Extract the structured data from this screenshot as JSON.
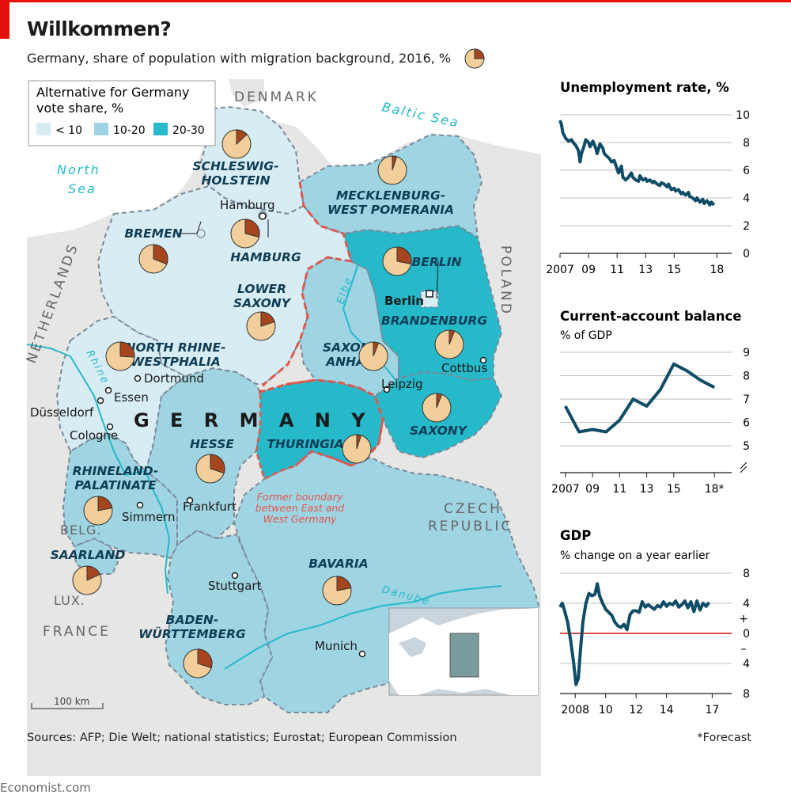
{
  "header": {
    "title": "Willkommen?",
    "subtitle": "Germany, share of population with migration background, 2016, %"
  },
  "colors": {
    "accent_red": "#e3120b",
    "sea": "#ffffff",
    "land_other": "#e6e6e4",
    "afd_lt10": "#d8ecf4",
    "afd_10_20": "#9fd4e2",
    "afd_20_30": "#25b9ca",
    "pie_share": "#a6461f",
    "pie_rest": "#f2cf9a",
    "line": "#0f4c66",
    "border_east_west": "#e2574c",
    "state_border": "#7a8a9a"
  },
  "map": {
    "legend": {
      "title_line1": "Alternative for Germany",
      "title_line2": "vote share, %",
      "items": [
        "< 10",
        "10-20",
        "20-30"
      ]
    },
    "countries": {
      "denmark": "DENMARK",
      "poland": "POLAND",
      "netherlands": "NETHERLANDS",
      "belgium": "BELG.",
      "luxembourg": "LUX.",
      "france": "FRANCE",
      "czech_line1": "CZECH",
      "czech_line2": "REPUBLIC",
      "germany": "G E R M A N Y"
    },
    "waters": {
      "north_sea_1": "North",
      "north_sea_2": "Sea",
      "baltic_sea": "Baltic Sea",
      "rhine": "Rhine",
      "elbe": "Elbe",
      "danube": "Danube"
    },
    "east_west_note": [
      "Former boundary",
      "between East and",
      "West Germany"
    ],
    "scale": "100 km",
    "cities": {
      "hamburg": "Hamburg",
      "berlin": "Berlin",
      "dortmund": "Dortmund",
      "essen": "Essen",
      "dusseldorf": "Düsseldorf",
      "cologne": "Cologne",
      "leipzig": "Leipzig",
      "cottbus": "Cottbus",
      "frankfurt": "Frankfurt",
      "simmern": "Simmern",
      "stuttgart": "Stuttgart",
      "munich": "Munich"
    },
    "states": [
      {
        "key": "sh",
        "name": [
          "SCHLESWIG-",
          "HOLSTEIN"
        ],
        "afd_band": "< 10",
        "share": 13
      },
      {
        "key": "mv",
        "name": [
          "MECKLENBURG-",
          "WEST POMERANIA"
        ],
        "afd_band": "10-20",
        "share": 5
      },
      {
        "key": "hb",
        "name": [
          "BREMEN"
        ],
        "afd_band": "< 10",
        "share": 31
      },
      {
        "key": "hh",
        "name": [
          "HAMBURG"
        ],
        "afd_band": "< 10",
        "share": 29
      },
      {
        "key": "ni",
        "name": [
          "LOWER",
          "SAXONY"
        ],
        "afd_band": "< 10",
        "share": 20
      },
      {
        "key": "be",
        "name": [
          "BERLIN"
        ],
        "afd_band": "< 10",
        "share": 28
      },
      {
        "key": "bb",
        "name": [
          "BRANDENBURG"
        ],
        "afd_band": "20-30",
        "share": 6
      },
      {
        "key": "nw",
        "name": [
          "NORTH RHINE-",
          "WESTPHALIA"
        ],
        "afd_band": "< 10",
        "share": 26
      },
      {
        "key": "st",
        "name": [
          "SAXONY-",
          "ANHALT"
        ],
        "afd_band": "10-20",
        "share": 6
      },
      {
        "key": "sn",
        "name": [
          "SAXONY"
        ],
        "afd_band": "20-30",
        "share": 6
      },
      {
        "key": "th",
        "name": [
          "THURINGIA"
        ],
        "afd_band": "20-30",
        "share": 5
      },
      {
        "key": "he",
        "name": [
          "HESSE"
        ],
        "afd_band": "10-20",
        "share": 30
      },
      {
        "key": "rp",
        "name": [
          "RHINELAND-",
          "PALATINATE"
        ],
        "afd_band": "10-20",
        "share": 22
      },
      {
        "key": "sl",
        "name": [
          "SAARLAND"
        ],
        "afd_band": "10-20",
        "share": 18
      },
      {
        "key": "by",
        "name": [
          "BAVARIA"
        ],
        "afd_band": "10-20",
        "share": 22
      },
      {
        "key": "bw",
        "name": [
          "BADEN-",
          "WÜRTTEMBERG"
        ],
        "afd_band": "10-20",
        "share": 30
      }
    ]
  },
  "chart_data": [
    {
      "type": "line",
      "title": "Unemployment rate, %",
      "subtitle": "",
      "x_tick_labels": [
        "2007",
        "09",
        "11",
        "13",
        "15",
        "18"
      ],
      "x_tick_values": [
        2007,
        2009,
        2011,
        2013,
        2015,
        2018
      ],
      "xlim": [
        2007,
        2018.2
      ],
      "ylim": [
        0,
        10
      ],
      "y_ticks": [
        0,
        2,
        4,
        6,
        8,
        10
      ],
      "y_tick_labels": [
        "0",
        "2",
        "4",
        "6",
        "8",
        "10"
      ],
      "grid": true,
      "series": [
        {
          "values": [
            [
              2007.0,
              9.6
            ],
            [
              2007.1,
              9.3
            ],
            [
              2007.2,
              8.7
            ],
            [
              2007.4,
              8.3
            ],
            [
              2007.6,
              8.1
            ],
            [
              2007.8,
              8.2
            ],
            [
              2008.0,
              7.9
            ],
            [
              2008.1,
              7.8
            ],
            [
              2008.3,
              7.4
            ],
            [
              2008.4,
              6.6
            ],
            [
              2008.5,
              7.2
            ],
            [
              2008.7,
              7.8
            ],
            [
              2008.8,
              8.2
            ],
            [
              2009.0,
              8.0
            ],
            [
              2009.1,
              7.7
            ],
            [
              2009.3,
              8.1
            ],
            [
              2009.5,
              7.6
            ],
            [
              2009.6,
              7.2
            ],
            [
              2009.8,
              7.9
            ],
            [
              2010.0,
              7.6
            ],
            [
              2010.1,
              7.2
            ],
            [
              2010.3,
              7.0
            ],
            [
              2010.5,
              6.8
            ],
            [
              2010.6,
              6.6
            ],
            [
              2010.8,
              6.7
            ],
            [
              2011.0,
              6.1
            ],
            [
              2011.1,
              5.8
            ],
            [
              2011.3,
              6.3
            ],
            [
              2011.4,
              5.5
            ],
            [
              2011.6,
              5.3
            ],
            [
              2011.8,
              5.5
            ],
            [
              2012.0,
              5.8
            ],
            [
              2012.1,
              5.5
            ],
            [
              2012.3,
              5.3
            ],
            [
              2012.5,
              5.2
            ],
            [
              2012.6,
              5.6
            ],
            [
              2012.8,
              5.3
            ],
            [
              2013.0,
              5.4
            ],
            [
              2013.1,
              5.2
            ],
            [
              2013.3,
              5.3
            ],
            [
              2013.5,
              5.1
            ],
            [
              2013.6,
              5.2
            ],
            [
              2013.8,
              5.0
            ],
            [
              2014.0,
              4.9
            ],
            [
              2014.1,
              5.1
            ],
            [
              2014.3,
              5.0
            ],
            [
              2014.5,
              4.8
            ],
            [
              2014.6,
              5.0
            ],
            [
              2014.8,
              4.6
            ],
            [
              2015.0,
              4.7
            ],
            [
              2015.1,
              4.5
            ],
            [
              2015.3,
              4.6
            ],
            [
              2015.5,
              4.3
            ],
            [
              2015.6,
              4.4
            ],
            [
              2015.8,
              4.2
            ],
            [
              2016.0,
              4.4
            ],
            [
              2016.1,
              4.1
            ],
            [
              2016.3,
              4.0
            ],
            [
              2016.5,
              3.8
            ],
            [
              2016.6,
              4.0
            ],
            [
              2016.8,
              3.7
            ],
            [
              2017.0,
              3.9
            ],
            [
              2017.1,
              3.6
            ],
            [
              2017.3,
              3.8
            ],
            [
              2017.5,
              3.5
            ],
            [
              2017.6,
              3.7
            ],
            [
              2017.8,
              3.5
            ]
          ]
        }
      ]
    },
    {
      "type": "line",
      "title": "Current-account balance",
      "subtitle": "% of GDP",
      "x_tick_labels": [
        "2007",
        "09",
        "11",
        "13",
        "15",
        "18*"
      ],
      "x_tick_values": [
        2007,
        2009,
        2011,
        2013,
        2015,
        2018
      ],
      "xlim": [
        2006.6,
        2018.4
      ],
      "ylim": [
        4.6,
        9
      ],
      "y_ticks": [
        5,
        6,
        7,
        8,
        9
      ],
      "y_tick_labels": [
        "5",
        "6",
        "7",
        "8",
        "9"
      ],
      "axis_break": true,
      "grid": true,
      "series": [
        {
          "values": [
            [
              2007,
              6.7
            ],
            [
              2008,
              5.6
            ],
            [
              2009,
              5.7
            ],
            [
              2010,
              5.6
            ],
            [
              2011,
              6.1
            ],
            [
              2012,
              7.0
            ],
            [
              2013,
              6.7
            ],
            [
              2014,
              7.4
            ],
            [
              2015,
              8.5
            ],
            [
              2016,
              8.2
            ],
            [
              2017,
              7.8
            ],
            [
              2018,
              7.5
            ]
          ]
        }
      ]
    },
    {
      "type": "line",
      "title": "GDP",
      "subtitle": "% change on a year earlier",
      "x_tick_labels": [
        "2008",
        "10",
        "12",
        "14",
        "17"
      ],
      "x_tick_values": [
        2008,
        2010,
        2012,
        2014,
        2017
      ],
      "xlim": [
        2007.0,
        2017.5
      ],
      "ylim": [
        -8,
        8
      ],
      "y_ticks": [
        -8,
        -4,
        0,
        4,
        8
      ],
      "y_tick_labels": [
        "8",
        "4",
        "0",
        "4",
        "8"
      ],
      "sign_labels": [
        "+",
        "–"
      ],
      "zero_line_color": "#e3120b",
      "grid": true,
      "series": [
        {
          "values": [
            [
              2007.0,
              3.5
            ],
            [
              2007.15,
              4.0
            ],
            [
              2007.3,
              3.0
            ],
            [
              2007.5,
              1.5
            ],
            [
              2007.7,
              -1.0
            ],
            [
              2007.9,
              -4.0
            ],
            [
              2008.05,
              -6.8
            ],
            [
              2008.2,
              -6.0
            ],
            [
              2008.35,
              -2.0
            ],
            [
              2008.5,
              1.5
            ],
            [
              2008.7,
              4.0
            ],
            [
              2008.9,
              5.3
            ],
            [
              2009.1,
              5.0
            ],
            [
              2009.3,
              5.2
            ],
            [
              2009.45,
              6.6
            ],
            [
              2009.6,
              5.0
            ],
            [
              2009.8,
              4.0
            ],
            [
              2010.0,
              3.2
            ],
            [
              2010.2,
              2.8
            ],
            [
              2010.4,
              2.4
            ],
            [
              2010.6,
              1.5
            ],
            [
              2010.8,
              1.0
            ],
            [
              2011.0,
              0.8
            ],
            [
              2011.2,
              1.2
            ],
            [
              2011.4,
              0.5
            ],
            [
              2011.6,
              2.5
            ],
            [
              2011.8,
              3.0
            ],
            [
              2012.0,
              3.0
            ],
            [
              2012.2,
              2.8
            ],
            [
              2012.4,
              4.2
            ],
            [
              2012.6,
              3.5
            ],
            [
              2012.8,
              3.8
            ],
            [
              2013.0,
              3.5
            ],
            [
              2013.2,
              3.2
            ],
            [
              2013.4,
              3.7
            ],
            [
              2013.6,
              3.5
            ],
            [
              2013.8,
              4.2
            ],
            [
              2014.0,
              3.6
            ],
            [
              2014.2,
              4.0
            ],
            [
              2014.4,
              3.8
            ],
            [
              2014.6,
              4.3
            ],
            [
              2014.8,
              3.5
            ],
            [
              2015.0,
              3.8
            ],
            [
              2015.2,
              4.3
            ],
            [
              2015.4,
              3.4
            ],
            [
              2015.6,
              4.2
            ],
            [
              2015.8,
              2.9
            ],
            [
              2016.0,
              4.3
            ],
            [
              2016.2,
              3.1
            ],
            [
              2016.4,
              4.0
            ],
            [
              2016.6,
              3.6
            ],
            [
              2016.8,
              4.1
            ]
          ]
        }
      ]
    }
  ],
  "footer": {
    "sources": "Sources: AFP; Die Welt; national statistics; Eurostat; European Commission",
    "forecast_note": "*Forecast",
    "brand": "Economist.com"
  }
}
